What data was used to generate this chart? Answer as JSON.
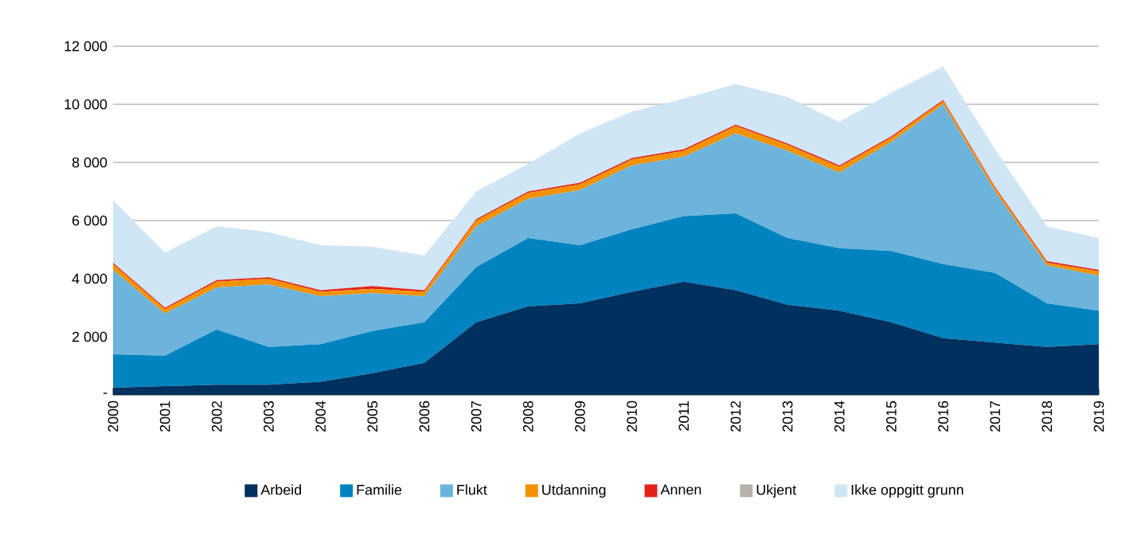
{
  "chart_data": {
    "type": "area",
    "stacked": true,
    "grid": "y",
    "legend": "bottom",
    "categories": [
      "2000",
      "2001",
      "2002",
      "2003",
      "2004",
      "2005",
      "2006",
      "2007",
      "2008",
      "2009",
      "2010",
      "2011",
      "2012",
      "2013",
      "2014",
      "2015",
      "2016",
      "2017",
      "2018",
      "2019"
    ],
    "ylim": [
      0,
      12000
    ],
    "yticks": [
      {
        "value": 0,
        "label": "-"
      },
      {
        "value": 2000,
        "label": "2 000"
      },
      {
        "value": 4000,
        "label": "4 000"
      },
      {
        "value": 6000,
        "label": "6 000"
      },
      {
        "value": 8000,
        "label": "8 000"
      },
      {
        "value": 10000,
        "label": "10 000"
      },
      {
        "value": 12000,
        "label": "12 000"
      }
    ],
    "series": [
      {
        "name": "Arbeid",
        "color": "#00305e",
        "values": [
          250,
          300,
          350,
          350,
          450,
          750,
          1100,
          2500,
          3050,
          3150,
          3550,
          3900,
          3600,
          3100,
          2900,
          2500,
          1950,
          1800,
          1650,
          1750
        ]
      },
      {
        "name": "Familie",
        "color": "#0083bf",
        "values": [
          1150,
          1050,
          1900,
          1300,
          1300,
          1450,
          1400,
          1900,
          2350,
          2000,
          2150,
          2250,
          2650,
          2300,
          2150,
          2450,
          2550,
          2400,
          1500,
          1150
        ]
      },
      {
        "name": "Flukt",
        "color": "#6cb4dc",
        "values": [
          2900,
          1450,
          1450,
          2150,
          1650,
          1300,
          900,
          1400,
          1350,
          1900,
          2200,
          2050,
          2750,
          3000,
          2600,
          3750,
          5500,
          2800,
          1300,
          1200
        ]
      },
      {
        "name": "Utdanning",
        "color": "#f39200",
        "values": [
          200,
          150,
          200,
          200,
          150,
          150,
          150,
          200,
          200,
          200,
          200,
          200,
          250,
          200,
          200,
          150,
          100,
          100,
          100,
          150
        ]
      },
      {
        "name": "Annen",
        "color": "#e2231a",
        "values": [
          50,
          50,
          50,
          50,
          50,
          100,
          50,
          50,
          50,
          50,
          50,
          50,
          50,
          50,
          50,
          50,
          50,
          50,
          50,
          50
        ]
      },
      {
        "name": "Ukjent",
        "color": "#b7b1a9",
        "values": [
          null,
          null,
          null,
          null,
          null,
          null,
          null,
          null,
          null,
          null,
          null,
          null,
          null,
          null,
          null,
          null,
          null,
          null,
          null,
          null
        ]
      },
      {
        "name": "Ikke oppgitt grunn",
        "color": "#d0e6f5",
        "values": [
          2150,
          1900,
          1850,
          1550,
          1550,
          1350,
          1200,
          950,
          950,
          1700,
          1600,
          1750,
          1400,
          1600,
          1500,
          1500,
          1150,
          1300,
          1200,
          1100
        ]
      }
    ]
  }
}
